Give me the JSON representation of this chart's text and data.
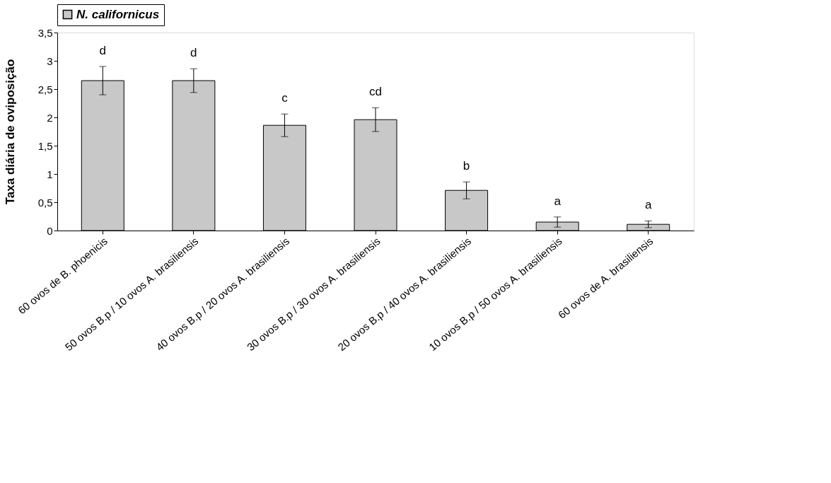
{
  "chart_data": {
    "type": "bar",
    "ylabel": "Taxa diária de oviposição",
    "categories": [
      "60 ovos de B. phoenicis",
      "50 ovos B.p / 10 ovos A. brasiliensis",
      "40 ovos B.p / 20 ovos A. brasiliensis",
      "30 ovos B.p / 30 ovos A. brasiliensis",
      "20 ovos B.p / 40 ovos A. brasiliensis",
      "10 ovos B.p / 50 ovos A. brasiliensis",
      "60 ovos de A. brasiliensis"
    ],
    "series": [
      {
        "name": "N. californicus",
        "color": "#c8c8c8",
        "values": [
          2.65,
          2.65,
          1.86,
          1.96,
          0.71,
          0.15,
          0.11
        ],
        "errors": [
          0.25,
          0.21,
          0.2,
          0.21,
          0.15,
          0.09,
          0.06
        ]
      }
    ],
    "ylim": [
      0,
      3.5
    ],
    "yticks": [
      0,
      {
        "value": 0.5,
        "label": "0,5"
      },
      1,
      {
        "value": 1.5,
        "label": "1,5"
      },
      2,
      {
        "value": 2.5,
        "label": "2,5"
      },
      3,
      {
        "value": 3.5,
        "label": "3,5"
      }
    ],
    "annotations": [
      "d",
      "d",
      "c",
      "cd",
      "b",
      "a",
      "a"
    ],
    "grid": false,
    "legend": "top"
  }
}
